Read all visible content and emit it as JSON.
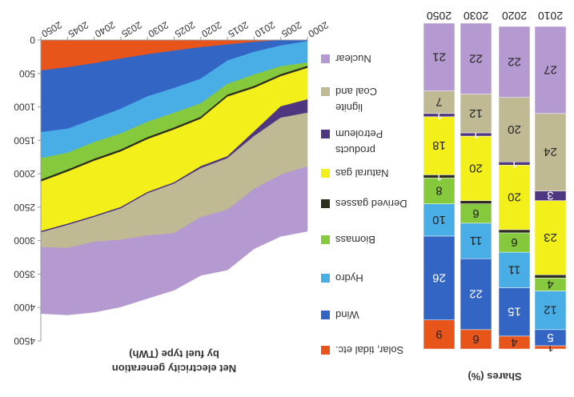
{
  "figure_title": "Net electricity generation",
  "chart_data": [
    {
      "type": "area",
      "stacked": true,
      "title": "Net electricity generation",
      "subtitle": "by fuel type (TWh)",
      "xlabel": "",
      "ylabel": "TWh",
      "x": [
        2000,
        2005,
        2010,
        2015,
        2020,
        2025,
        2030,
        2035,
        2040,
        2045,
        2050
      ],
      "x_tick_labels": [
        "2000",
        "2005",
        "2010",
        "2015",
        "2020",
        "2025",
        "2030",
        "2035",
        "2040",
        "2045",
        "2050"
      ],
      "ylim": [
        0,
        4500
      ],
      "y_ticks": [
        0,
        500,
        1000,
        1500,
        2000,
        2500,
        3000,
        3500,
        4000,
        4500
      ],
      "y_tick_labels": [
        "0",
        "500",
        "1000",
        "1500",
        "2000",
        "2500",
        "3000",
        "3500",
        "4000",
        "4500"
      ],
      "grid": false,
      "series": [
        {
          "name": "Solar, tidal etc.",
          "color": "#e8551b",
          "values": [
            0,
            5,
            30,
            70,
            110,
            160,
            215,
            280,
            350,
            410,
            460
          ]
        },
        {
          "name": "Wind",
          "color": "#3366c4",
          "values": [
            20,
            80,
            150,
            240,
            470,
            560,
            630,
            750,
            830,
            920,
            920
          ]
        },
        {
          "name": "Hydro",
          "color": "#4aaee6",
          "values": [
            320,
            310,
            340,
            350,
            370,
            370,
            380,
            370,
            350,
            360,
            390
          ]
        },
        {
          "name": "Biomass",
          "color": "#86c93c",
          "values": [
            50,
            120,
            170,
            160,
            200,
            220,
            230,
            240,
            250,
            250,
            320
          ]
        },
        {
          "name": "Derived gasses",
          "color": "#2e2e1e",
          "values": [
            30,
            30,
            30,
            30,
            30,
            30,
            30,
            30,
            30,
            30,
            30
          ]
        },
        {
          "name": "Natural gas",
          "color": "#f2ef1a",
          "values": [
            470,
            450,
            650,
            890,
            710,
            790,
            790,
            830,
            820,
            780,
            740
          ]
        },
        {
          "name": "Petroleum",
          "color": "#4e3681",
          "values": [
            200,
            170,
            70,
            30,
            30,
            20,
            20,
            20,
            20,
            20,
            20
          ]
        },
        {
          "name": "Coal and lignite",
          "color": "#bfb994",
          "values": [
            800,
            850,
            790,
            770,
            730,
            740,
            630,
            470,
            370,
            340,
            220
          ]
        },
        {
          "name": "Nuclear",
          "color": "#b49ad0",
          "values": [
            970,
            920,
            890,
            900,
            870,
            850,
            940,
            1000,
            1050,
            1000,
            990
          ]
        }
      ]
    },
    {
      "type": "bar",
      "stacked": true,
      "title": "Shares (%)",
      "categories": [
        "2010",
        "2020",
        "2030",
        "2050"
      ],
      "ylim": [
        0,
        100
      ],
      "series": [
        {
          "name": "Solar, tidal etc.",
          "color": "#e8551b",
          "values": [
            1,
            4,
            6,
            9
          ],
          "labels": [
            "1",
            "4",
            "6",
            "9"
          ]
        },
        {
          "name": "Wind",
          "color": "#3366c4",
          "values": [
            5,
            15,
            22,
            26
          ],
          "labels": [
            "5",
            "15",
            "22",
            "26"
          ]
        },
        {
          "name": "Hydro",
          "color": "#4aaee6",
          "values": [
            12,
            11,
            11,
            10
          ],
          "labels": [
            "12",
            "11",
            "11",
            "10"
          ]
        },
        {
          "name": "Biomass",
          "color": "#86c93c",
          "values": [
            4,
            6,
            6,
            8
          ],
          "labels": [
            "4",
            "6",
            "6",
            "8"
          ]
        },
        {
          "name": "Derived gasses",
          "color": "#2e2e1e",
          "values": [
            1,
            1,
            1,
            1
          ],
          "labels": [
            "",
            "",
            "",
            "1"
          ]
        },
        {
          "name": "Natural gas",
          "color": "#f2ef1a",
          "values": [
            23,
            20,
            20,
            18
          ],
          "labels": [
            "23",
            "20",
            "20",
            "18"
          ]
        },
        {
          "name": "Petroleum",
          "color": "#4e3681",
          "values": [
            3,
            1,
            1,
            1
          ],
          "labels": [
            "3",
            "1",
            "1",
            "1"
          ]
        },
        {
          "name": "Coal and lignite",
          "color": "#bfb994",
          "values": [
            24,
            20,
            12,
            7
          ],
          "labels": [
            "24",
            "20",
            "12",
            "7"
          ]
        },
        {
          "name": "Nuclear",
          "color": "#b49ad0",
          "values": [
            27,
            22,
            22,
            21
          ],
          "labels": [
            "27",
            "22",
            "22",
            "21"
          ]
        }
      ]
    }
  ],
  "legend": {
    "placement": "between",
    "order": [
      "Nuclear",
      "Coal and lignite",
      "Petroleum",
      "Natural gas",
      "Derived gasses",
      "Biomass",
      "Hydro",
      "Wind",
      "Solar, tidal etc."
    ],
    "display_lines": {
      "Nuclear": [
        "Nuclear"
      ],
      "Coal and lignite": [
        "Coal and",
        "lignite"
      ],
      "Petroleum": [
        "Petroleum",
        "products"
      ],
      "Natural gas": [
        "Natural gas"
      ],
      "Derived gasses": [
        "Derived gasses"
      ],
      "Biomass": [
        "Biomass"
      ],
      "Hydro": [
        "Hydro"
      ],
      "Wind": [
        "Wind"
      ],
      "Solar, tidal etc.": [
        "Solar, tidal etc."
      ]
    }
  },
  "orientation": "rotated-180"
}
